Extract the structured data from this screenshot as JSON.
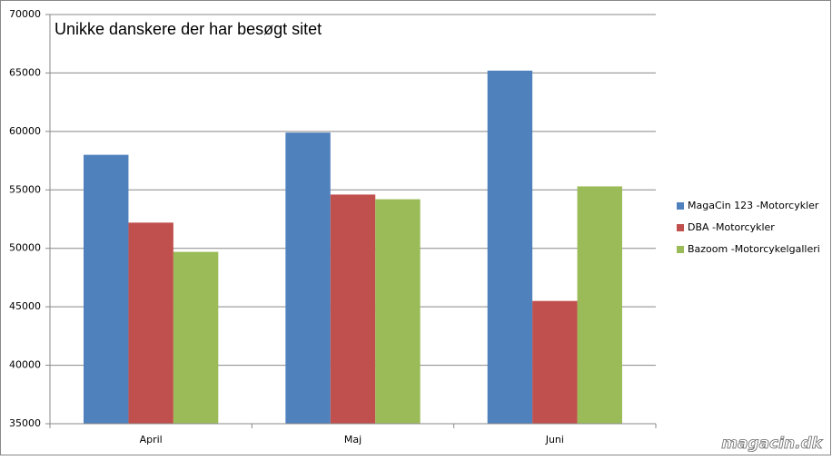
{
  "chart_data": {
    "type": "bar",
    "title": "Unikke danskere der har besøgt sitet",
    "categories": [
      "April",
      "Maj",
      "Juni"
    ],
    "series": [
      {
        "name": "MagaCin 123 -Motorcykler",
        "color": "#4f81bd",
        "values": [
          58000,
          59900,
          65200
        ]
      },
      {
        "name": "DBA -Motorcykler",
        "color": "#c0504d",
        "values": [
          52200,
          54600,
          45500
        ]
      },
      {
        "name": "Bazoom -Motorcykelgalleri",
        "color": "#9bbb59",
        "values": [
          49700,
          54200,
          55300
        ]
      }
    ],
    "ylim": [
      35000,
      70000
    ],
    "yticks": [
      35000,
      40000,
      45000,
      50000,
      55000,
      60000,
      65000,
      70000
    ],
    "grid": true,
    "legend": "right",
    "watermark": "magacin.dk"
  }
}
